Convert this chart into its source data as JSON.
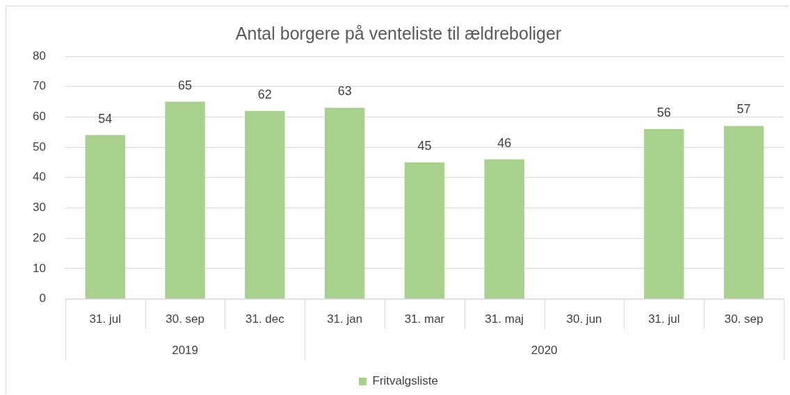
{
  "chart_data": {
    "type": "bar",
    "title": "Antal borgere på venteliste til ældreboliger",
    "categories": [
      "31. jul",
      "30. sep",
      "31. dec",
      "31. jan",
      "31. mar",
      "31. maj",
      "30. jun",
      "31. jul",
      "30. sep"
    ],
    "series": [
      {
        "name": "Fritvalgsliste",
        "color": "#a9d18e",
        "values": [
          54,
          65,
          62,
          63,
          45,
          46,
          null,
          56,
          57
        ]
      }
    ],
    "ylim": [
      0,
      80
    ],
    "yticks": [
      0,
      10,
      20,
      30,
      40,
      50,
      60,
      70,
      80
    ],
    "grid": "y",
    "legend": "bottom",
    "data_labels": true,
    "annotations": [
      "2019",
      "2020"
    ]
  }
}
